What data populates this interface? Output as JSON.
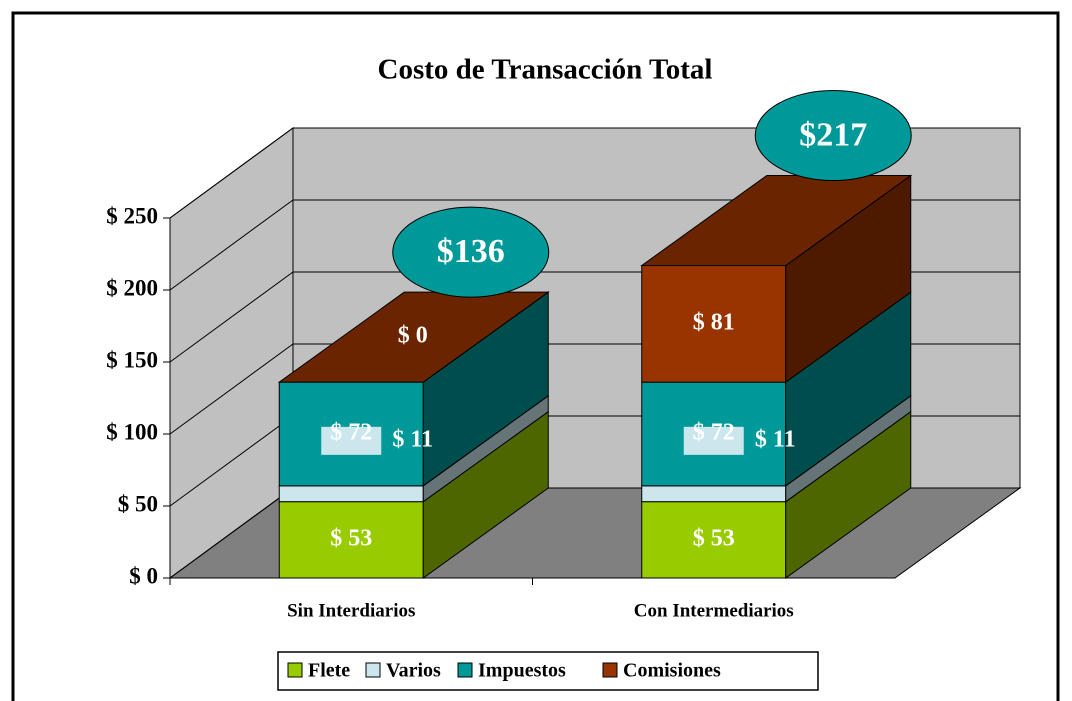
{
  "chart_data": {
    "type": "bar3d_stacked",
    "title": "Costo de Transacción Total",
    "categories": [
      "Sin Interdiarios",
      "Con Intermediarios"
    ],
    "series": [
      {
        "name": "Flete",
        "color": "#99cc00",
        "values": [
          53,
          53
        ],
        "value_labels": [
          "$ 53",
          "$ 53"
        ]
      },
      {
        "name": "Varios",
        "color": "#cce6ee",
        "values": [
          11,
          11
        ],
        "value_labels": [
          "$ 11",
          "$ 11"
        ]
      },
      {
        "name": "Impuestos",
        "color": "#009999",
        "values": [
          72,
          72
        ],
        "value_labels": [
          "$ 72",
          "$ 72"
        ]
      },
      {
        "name": "Comisiones",
        "color": "#993300",
        "values": [
          0,
          81
        ],
        "value_labels": [
          "$ 0",
          "$ 81"
        ]
      }
    ],
    "totals": {
      "values": [
        136,
        217
      ],
      "value_labels": [
        "$136",
        "$217"
      ],
      "color": "#009999"
    },
    "ylim": [
      0,
      250
    ],
    "yticks": [
      {
        "value": 0,
        "label": "$ 0"
      },
      {
        "value": 50,
        "label": "$ 50"
      },
      {
        "value": 100,
        "label": "$ 100"
      },
      {
        "value": 150,
        "label": "$ 150"
      },
      {
        "value": 200,
        "label": "$ 200"
      },
      {
        "value": 250,
        "label": "$ 250"
      }
    ],
    "grid": true,
    "legend": "bottom"
  }
}
